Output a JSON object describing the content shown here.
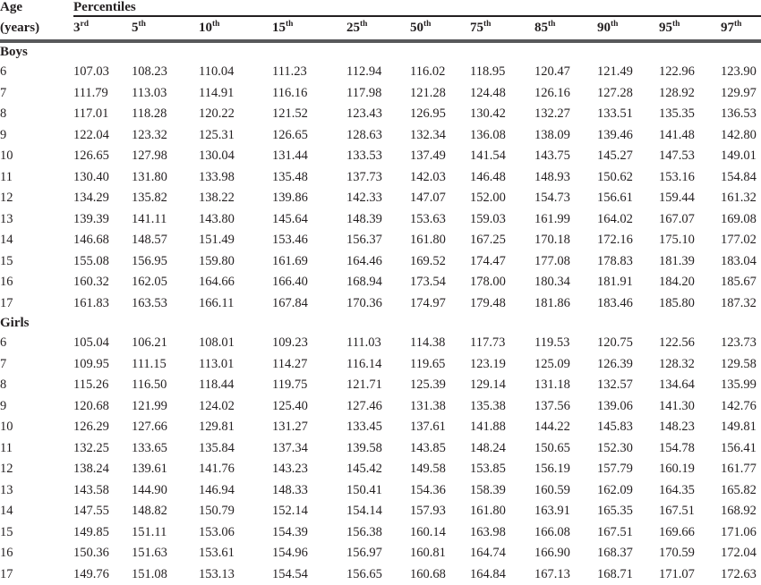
{
  "table": {
    "age_header": {
      "line1": "Age",
      "line2": "(years)"
    },
    "percentiles_header": "Percentiles",
    "columns": [
      {
        "value": "3",
        "ordinal": "rd"
      },
      {
        "value": "5",
        "ordinal": "th"
      },
      {
        "value": "10",
        "ordinal": "th"
      },
      {
        "value": "15",
        "ordinal": "th"
      },
      {
        "value": "25",
        "ordinal": "th"
      },
      {
        "value": "50",
        "ordinal": "th"
      },
      {
        "value": "75",
        "ordinal": "th"
      },
      {
        "value": "85",
        "ordinal": "th"
      },
      {
        "value": "90",
        "ordinal": "th"
      },
      {
        "value": "95",
        "ordinal": "th"
      },
      {
        "value": "97",
        "ordinal": "th"
      }
    ],
    "sections": [
      {
        "label": "Boys",
        "rows": [
          {
            "age": "6",
            "values": [
              "107.03",
              "108.23",
              "110.04",
              "111.23",
              "112.94",
              "116.02",
              "118.95",
              "120.47",
              "121.49",
              "122.96",
              "123.90"
            ]
          },
          {
            "age": "7",
            "values": [
              "111.79",
              "113.03",
              "114.91",
              "116.16",
              "117.98",
              "121.28",
              "124.48",
              "126.16",
              "127.28",
              "128.92",
              "129.97"
            ]
          },
          {
            "age": "8",
            "values": [
              "117.01",
              "118.28",
              "120.22",
              "121.52",
              "123.43",
              "126.95",
              "130.42",
              "132.27",
              "133.51",
              "135.35",
              "136.53"
            ]
          },
          {
            "age": "9",
            "values": [
              "122.04",
              "123.32",
              "125.31",
              "126.65",
              "128.63",
              "132.34",
              "136.08",
              "138.09",
              "139.46",
              "141.48",
              "142.80"
            ]
          },
          {
            "age": "10",
            "values": [
              "126.65",
              "127.98",
              "130.04",
              "131.44",
              "133.53",
              "137.49",
              "141.54",
              "143.75",
              "145.27",
              "147.53",
              "149.01"
            ]
          },
          {
            "age": "11",
            "values": [
              "130.40",
              "131.80",
              "133.98",
              "135.48",
              "137.73",
              "142.03",
              "146.48",
              "148.93",
              "150.62",
              "153.16",
              "154.84"
            ]
          },
          {
            "age": "12",
            "values": [
              "134.29",
              "135.82",
              "138.22",
              "139.86",
              "142.33",
              "147.07",
              "152.00",
              "154.73",
              "156.61",
              "159.44",
              "161.32"
            ]
          },
          {
            "age": "13",
            "values": [
              "139.39",
              "141.11",
              "143.80",
              "145.64",
              "148.39",
              "153.63",
              "159.03",
              "161.99",
              "164.02",
              "167.07",
              "169.08"
            ]
          },
          {
            "age": "14",
            "values": [
              "146.68",
              "148.57",
              "151.49",
              "153.46",
              "156.37",
              "161.80",
              "167.25",
              "170.18",
              "172.16",
              "175.10",
              "177.02"
            ]
          },
          {
            "age": "15",
            "values": [
              "155.08",
              "156.95",
              "159.80",
              "161.69",
              "164.46",
              "169.52",
              "174.47",
              "177.08",
              "178.83",
              "181.39",
              "183.04"
            ]
          },
          {
            "age": "16",
            "values": [
              "160.32",
              "162.05",
              "164.66",
              "166.40",
              "168.94",
              "173.54",
              "178.00",
              "180.34",
              "181.91",
              "184.20",
              "185.67"
            ]
          },
          {
            "age": "17",
            "values": [
              "161.83",
              "163.53",
              "166.11",
              "167.84",
              "170.36",
              "174.97",
              "179.48",
              "181.86",
              "183.46",
              "185.80",
              "187.32"
            ]
          }
        ]
      },
      {
        "label": "Girls",
        "rows": [
          {
            "age": "6",
            "values": [
              "105.04",
              "106.21",
              "108.01",
              "109.23",
              "111.03",
              "114.38",
              "117.73",
              "119.53",
              "120.75",
              "122.56",
              "123.73"
            ]
          },
          {
            "age": "7",
            "values": [
              "109.95",
              "111.15",
              "113.01",
              "114.27",
              "116.14",
              "119.65",
              "123.19",
              "125.09",
              "126.39",
              "128.32",
              "129.58"
            ]
          },
          {
            "age": "8",
            "values": [
              "115.26",
              "116.50",
              "118.44",
              "119.75",
              "121.71",
              "125.39",
              "129.14",
              "131.18",
              "132.57",
              "134.64",
              "135.99"
            ]
          },
          {
            "age": "9",
            "values": [
              "120.68",
              "121.99",
              "124.02",
              "125.40",
              "127.46",
              "131.38",
              "135.38",
              "137.56",
              "139.06",
              "141.30",
              "142.76"
            ]
          },
          {
            "age": "10",
            "values": [
              "126.29",
              "127.66",
              "129.81",
              "131.27",
              "133.45",
              "137.61",
              "141.88",
              "144.22",
              "145.83",
              "148.23",
              "149.81"
            ]
          },
          {
            "age": "11",
            "values": [
              "132.25",
              "133.65",
              "135.84",
              "137.34",
              "139.58",
              "143.85",
              "148.24",
              "150.65",
              "152.30",
              "154.78",
              "156.41"
            ]
          },
          {
            "age": "12",
            "values": [
              "138.24",
              "139.61",
              "141.76",
              "143.23",
              "145.42",
              "149.58",
              "153.85",
              "156.19",
              "157.79",
              "160.19",
              "161.77"
            ]
          },
          {
            "age": "13",
            "values": [
              "143.58",
              "144.90",
              "146.94",
              "148.33",
              "150.41",
              "154.36",
              "158.39",
              "160.59",
              "162.09",
              "164.35",
              "165.82"
            ]
          },
          {
            "age": "14",
            "values": [
              "147.55",
              "148.82",
              "150.79",
              "152.14",
              "154.14",
              "157.93",
              "161.80",
              "163.91",
              "165.35",
              "167.51",
              "168.92"
            ]
          },
          {
            "age": "15",
            "values": [
              "149.85",
              "151.11",
              "153.06",
              "154.39",
              "156.38",
              "160.14",
              "163.98",
              "166.08",
              "167.51",
              "169.66",
              "171.06"
            ]
          },
          {
            "age": "16",
            "values": [
              "150.36",
              "151.63",
              "153.61",
              "154.96",
              "156.97",
              "160.81",
              "164.74",
              "166.90",
              "168.37",
              "170.59",
              "172.04"
            ]
          },
          {
            "age": "17",
            "values": [
              "149.76",
              "151.08",
              "153.13",
              "154.54",
              "156.65",
              "160.68",
              "164.84",
              "167.13",
              "168.71",
              "171.07",
              "172.63"
            ]
          }
        ]
      }
    ]
  },
  "colors": {
    "text": "#231f20",
    "thin_rule": "#231f20",
    "thick_rule": "#58595b",
    "background": "#ffffff"
  }
}
